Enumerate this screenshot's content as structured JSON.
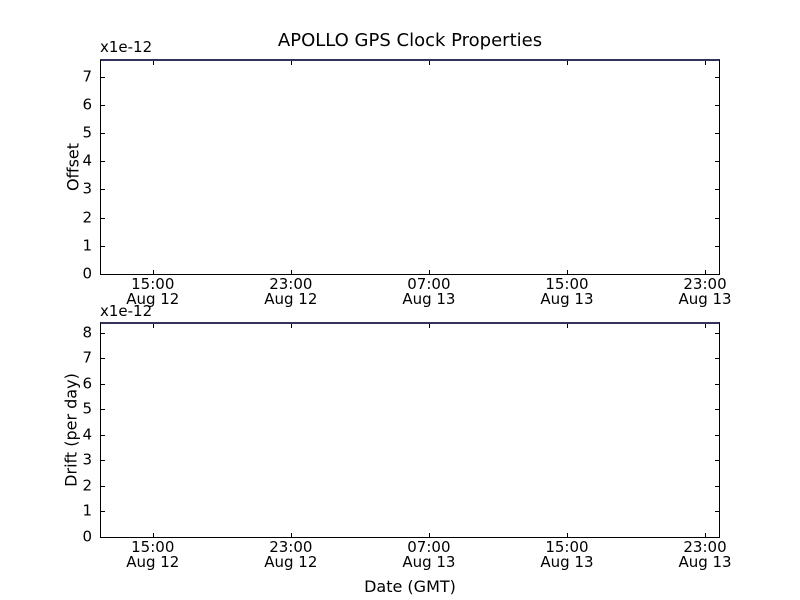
{
  "figure": {
    "title": "APOLLO GPS Clock Properties",
    "xlabel": "Date (GMT)",
    "background": "#ffffff",
    "spine_color": "#000000",
    "top_edge_line_color": "#32325c",
    "text_color": "#000000"
  },
  "chart_data": [
    {
      "type": "line",
      "title": "APOLLO GPS Clock Properties",
      "ylabel": "Offset",
      "y_offset_text": "x1e-12",
      "y_units": "x1e-12",
      "ylim": [
        0,
        7.56
      ],
      "yticks": [
        0,
        1,
        2,
        3,
        4,
        5,
        6,
        7
      ],
      "xlim_hours": [
        12.0,
        47.81
      ],
      "xtick_hours": [
        15,
        23,
        31,
        39,
        47
      ],
      "xtick_labels": [
        {
          "time": "15:00",
          "date": "Aug 12"
        },
        {
          "time": "23:00",
          "date": "Aug 12"
        },
        {
          "time": "07:00",
          "date": "Aug 13"
        },
        {
          "time": "15:00",
          "date": "Aug 13"
        },
        {
          "time": "23:00",
          "date": "Aug 13"
        }
      ],
      "series": [],
      "grid": false,
      "legend": null,
      "notes": "plot area empty except a dark navy line lying along the top axis edge",
      "top_edge_line_color": "#32325c"
    },
    {
      "type": "line",
      "ylabel": "Drift (per day)",
      "xlabel": "Date (GMT)",
      "y_offset_text": "x1e-12",
      "y_units": "x1e-12",
      "ylim": [
        0,
        8.34
      ],
      "yticks": [
        0,
        1,
        2,
        3,
        4,
        5,
        6,
        7,
        8
      ],
      "xlim_hours": [
        12.0,
        47.81
      ],
      "xtick_hours": [
        15,
        23,
        31,
        39,
        47
      ],
      "xtick_labels": [
        {
          "time": "15:00",
          "date": "Aug 12"
        },
        {
          "time": "23:00",
          "date": "Aug 12"
        },
        {
          "time": "07:00",
          "date": "Aug 13"
        },
        {
          "time": "15:00",
          "date": "Aug 13"
        },
        {
          "time": "23:00",
          "date": "Aug 13"
        }
      ],
      "series": [],
      "grid": false,
      "legend": null,
      "notes": "plot area empty except a dark navy line lying along the top axis edge",
      "top_edge_line_color": "#32325c"
    }
  ]
}
